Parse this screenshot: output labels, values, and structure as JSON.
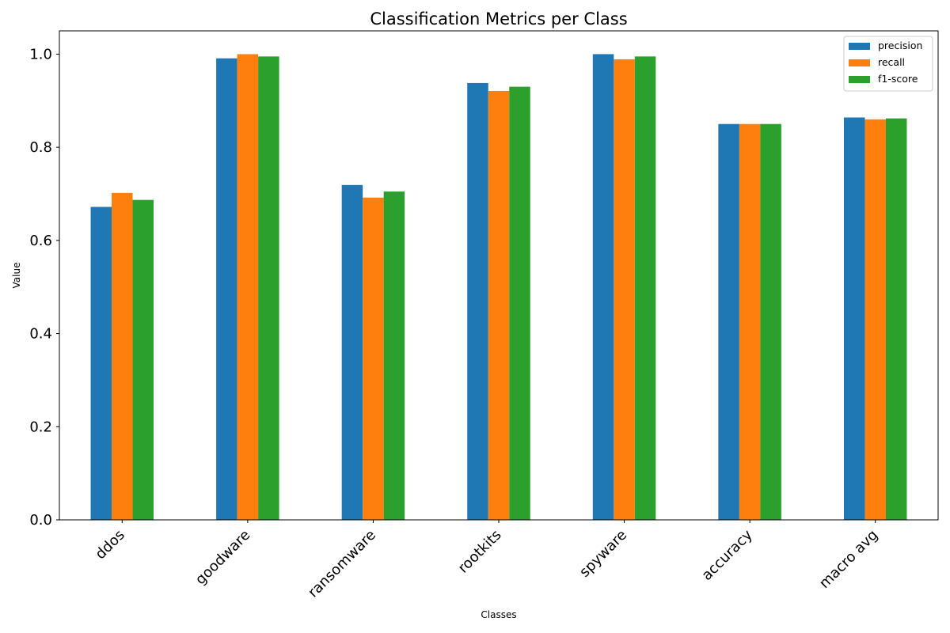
{
  "chart_data": {
    "type": "bar",
    "title": "Classification Metrics per Class",
    "xlabel": "Classes",
    "ylabel": "Value",
    "categories": [
      "ddos",
      "goodware",
      "ransomware",
      "rootkits",
      "spyware",
      "accuracy",
      "macro avg"
    ],
    "series": [
      {
        "name": "precision",
        "color": "#1f77b4",
        "values": [
          0.672,
          0.991,
          0.719,
          0.938,
          1.0,
          0.85,
          0.864
        ]
      },
      {
        "name": "recall",
        "color": "#ff7f0e",
        "values": [
          0.702,
          1.0,
          0.692,
          0.921,
          0.989,
          0.85,
          0.86
        ]
      },
      {
        "name": "f1-score",
        "color": "#2ca02c",
        "values": [
          0.687,
          0.995,
          0.705,
          0.93,
          0.995,
          0.85,
          0.862
        ]
      }
    ],
    "ylim": [
      0,
      1.05
    ],
    "yticks": [
      "0.0",
      "0.2",
      "0.4",
      "0.6",
      "0.8",
      "1.0"
    ],
    "grid": false,
    "legend_position": "top-right"
  }
}
